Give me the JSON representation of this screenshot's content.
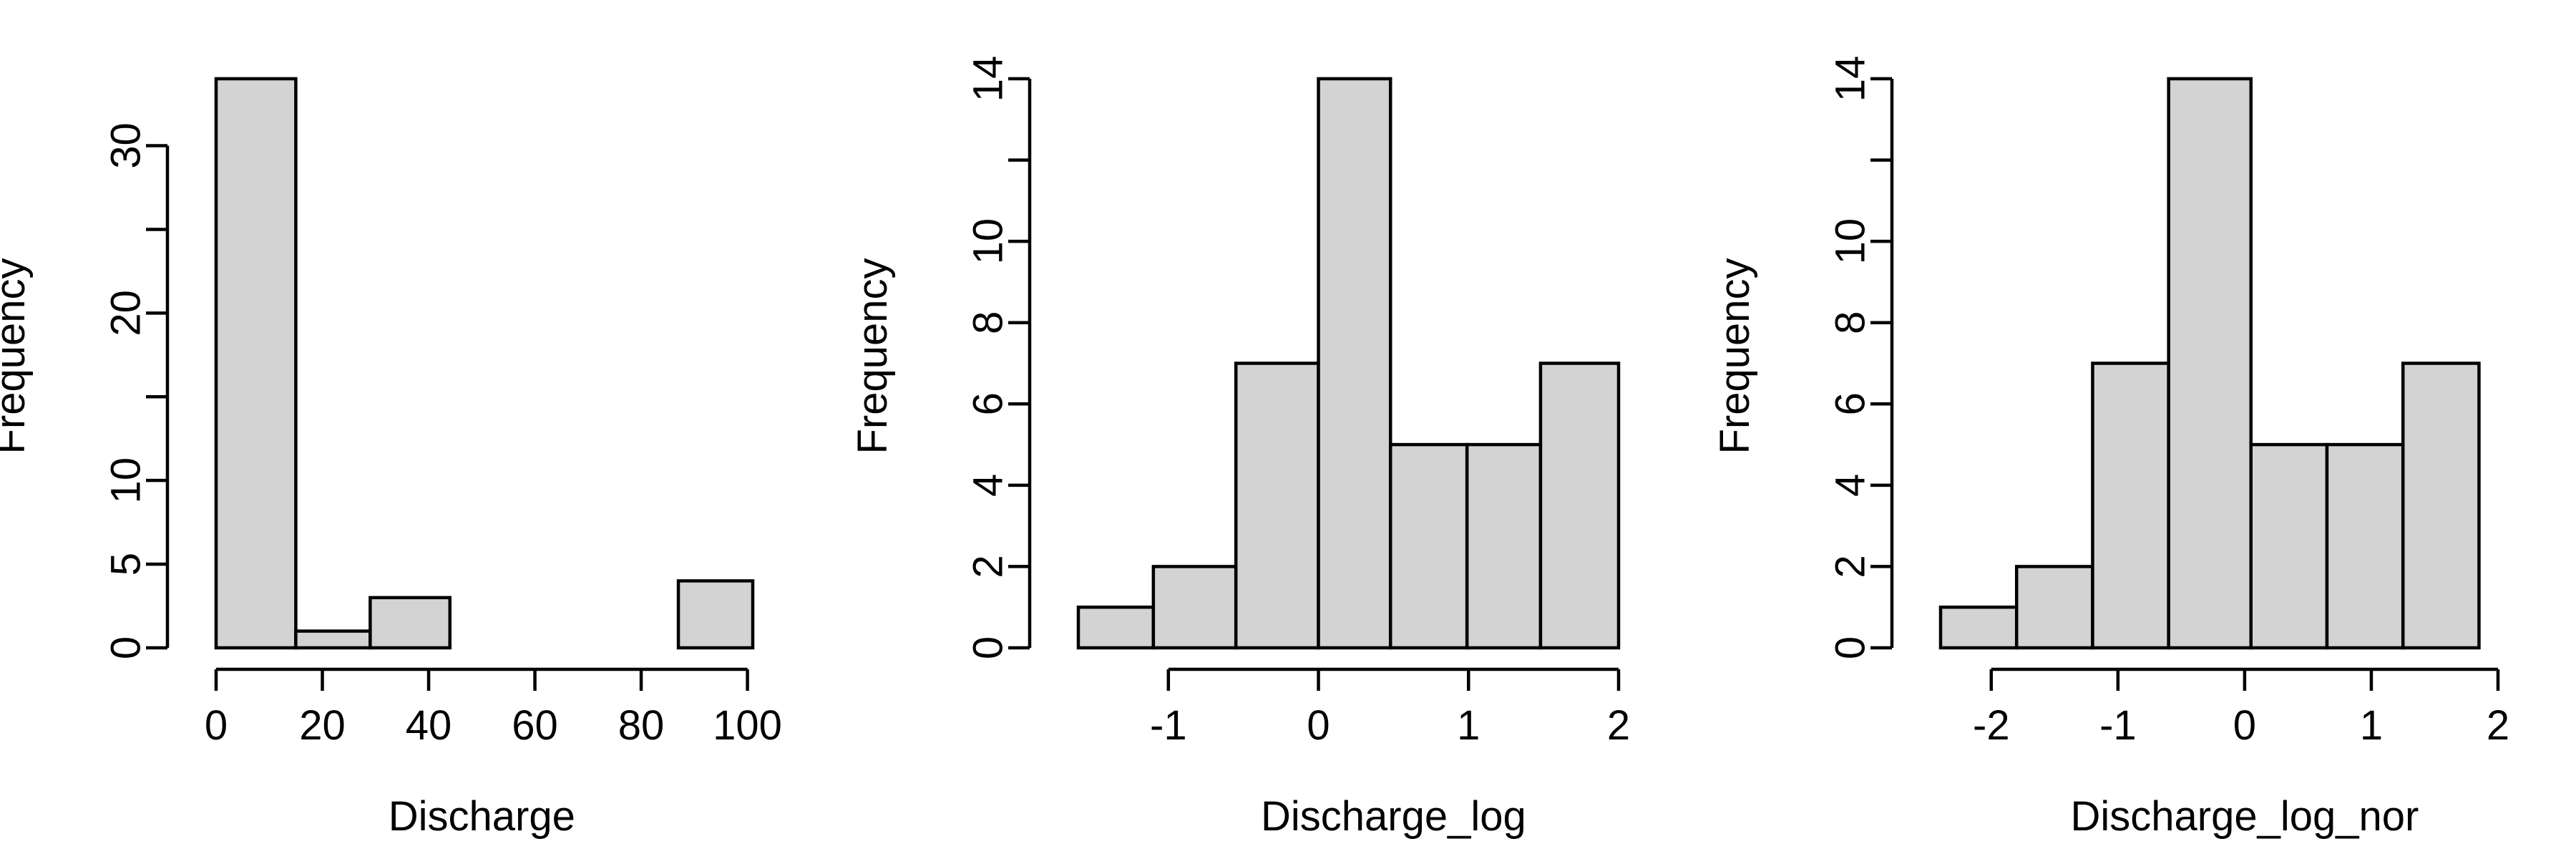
{
  "chart_data": [
    {
      "type": "bar",
      "subtype": "histogram",
      "title": "",
      "xlabel": "Discharge",
      "ylabel": "Frequency",
      "bins": [
        [
          0,
          15
        ],
        [
          15,
          29
        ],
        [
          29,
          44
        ],
        [
          44,
          58
        ],
        [
          58,
          72
        ],
        [
          72,
          87
        ],
        [
          87,
          101
        ]
      ],
      "values": [
        34,
        1,
        3,
        0,
        0,
        0,
        4
      ],
      "xlim": [
        0,
        101
      ],
      "ylim": [
        0,
        34
      ],
      "xticks": [
        0,
        20,
        40,
        60,
        80,
        100
      ],
      "xtick_labels": [
        "0",
        "20",
        "40",
        "60",
        "80",
        "100"
      ],
      "yticks": [
        0,
        5,
        10,
        15,
        20,
        25,
        30
      ],
      "ytick_labels": [
        "0",
        "5",
        "10",
        "",
        "20",
        "",
        "30"
      ],
      "grid": false,
      "colors": {
        "fill": "#d3d3d3",
        "edge": "#000000"
      }
    },
    {
      "type": "bar",
      "subtype": "histogram",
      "title": "",
      "xlabel": "Discharge_log",
      "ylabel": "Frequency",
      "bins": [
        [
          -1.6,
          -1.1
        ],
        [
          -1.1,
          -0.55
        ],
        [
          -0.55,
          0.0
        ],
        [
          0.0,
          0.48
        ],
        [
          0.48,
          0.99
        ],
        [
          0.99,
          1.48
        ],
        [
          1.48,
          2.0
        ]
      ],
      "values": [
        1,
        2,
        7,
        14,
        5,
        5,
        7
      ],
      "xlim": [
        -1.6,
        2.0
      ],
      "ylim": [
        0,
        14
      ],
      "xticks": [
        -1,
        0,
        1,
        2
      ],
      "xtick_labels": [
        "-1",
        "0",
        "1",
        "2"
      ],
      "yticks": [
        0,
        2,
        4,
        6,
        8,
        10,
        12,
        14
      ],
      "ytick_labels": [
        "0",
        "2",
        "4",
        "6",
        "8",
        "10",
        "",
        "14"
      ],
      "grid": false,
      "colors": {
        "fill": "#d3d3d3",
        "edge": "#000000"
      }
    },
    {
      "type": "bar",
      "subtype": "histogram",
      "title": "",
      "xlabel": "Discharge_log_nor",
      "ylabel": "Frequency",
      "bins": [
        [
          -2.4,
          -1.8
        ],
        [
          -1.8,
          -1.2
        ],
        [
          -1.2,
          -0.6
        ],
        [
          -0.6,
          0.05
        ],
        [
          0.05,
          0.65
        ],
        [
          0.65,
          1.25
        ],
        [
          1.25,
          1.85
        ]
      ],
      "values": [
        1,
        2,
        7,
        14,
        5,
        5,
        7
      ],
      "xlim": [
        -2.4,
        2.0
      ],
      "ylim": [
        0,
        14
      ],
      "xticks": [
        -2,
        -1,
        0,
        1,
        2
      ],
      "xtick_labels": [
        "-2",
        "-1",
        "0",
        "1",
        "2"
      ],
      "yticks": [
        0,
        2,
        4,
        6,
        8,
        10,
        12,
        14
      ],
      "ytick_labels": [
        "0",
        "2",
        "4",
        "6",
        "8",
        "10",
        "",
        "14"
      ],
      "grid": false,
      "colors": {
        "fill": "#d3d3d3",
        "edge": "#000000"
      }
    }
  ]
}
